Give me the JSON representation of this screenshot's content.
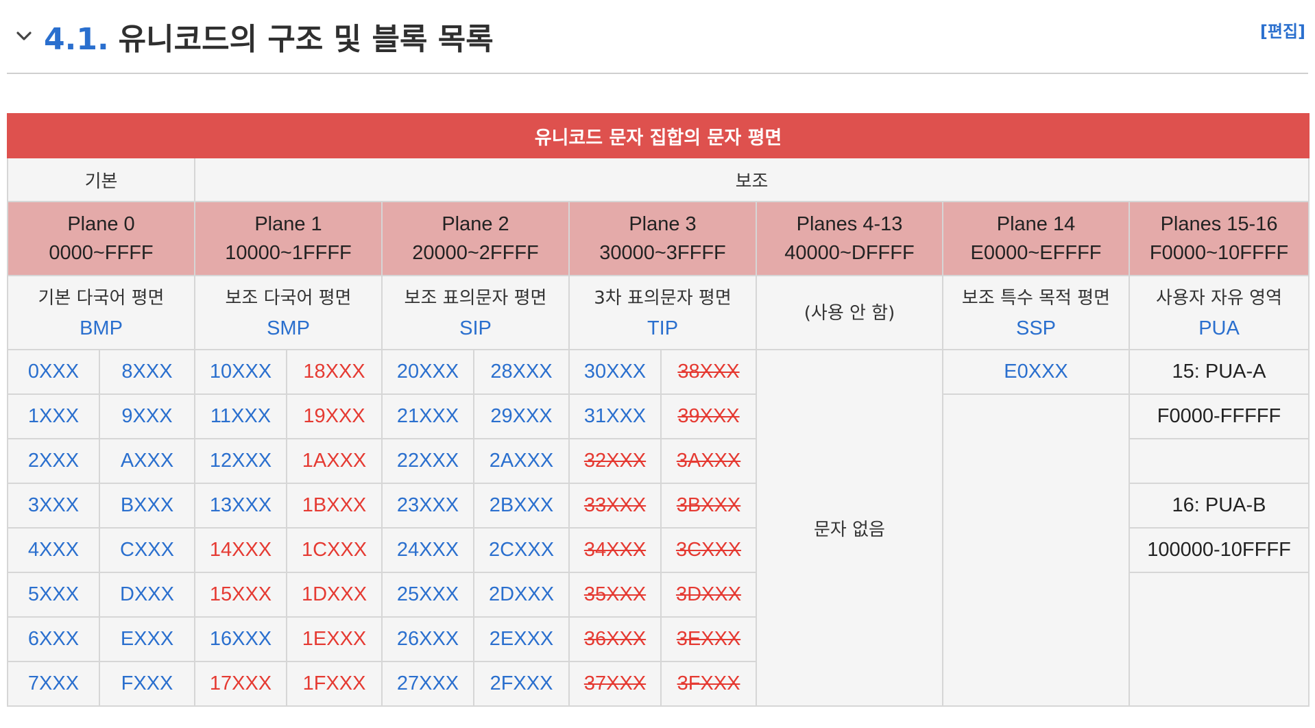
{
  "header": {
    "section_number": "4.1.",
    "section_title": "유니코드의 구조 및 블록 목록",
    "edit_label": "[편집]",
    "icons": {
      "collapse": "chevron-down-icon"
    }
  },
  "table": {
    "title": "유니코드 문자 집합의 문자 평면",
    "groups": {
      "basic": "기본",
      "supplementary": "보조"
    },
    "planes": [
      {
        "name": "Plane 0",
        "range": "0000~FFFF",
        "korean": "기본 다국어 평면",
        "abbr": "BMP"
      },
      {
        "name": "Plane 1",
        "range": "10000~1FFFF",
        "korean": "보조 다국어 평면",
        "abbr": "SMP"
      },
      {
        "name": "Plane 2",
        "range": "20000~2FFFF",
        "korean": "보조 표의문자 평면",
        "abbr": "SIP"
      },
      {
        "name": "Plane 3",
        "range": "30000~3FFFF",
        "korean": "3차 표의문자 평면",
        "abbr": "TIP"
      },
      {
        "name": "Planes 4-13",
        "range": "40000~DFFFF",
        "korean": "(사용 안 함)",
        "abbr": ""
      },
      {
        "name": "Plane 14",
        "range": "E0000~EFFFF",
        "korean": "보조 특수 목적 평면",
        "abbr": "SSP"
      },
      {
        "name": "Planes 15-16",
        "range": "F0000~10FFFF",
        "korean": "사용자 자유 영역",
        "abbr": "PUA"
      }
    ],
    "blocks": {
      "p0a": [
        "0XXX",
        "1XXX",
        "2XXX",
        "3XXX",
        "4XXX",
        "5XXX",
        "6XXX",
        "7XXX"
      ],
      "p0b": [
        "8XXX",
        "9XXX",
        "AXXX",
        "BXXX",
        "CXXX",
        "DXXX",
        "EXXX",
        "FXXX"
      ],
      "p1a": [
        "10XXX",
        "11XXX",
        "12XXX",
        "13XXX",
        "14XXX",
        "15XXX",
        "16XXX",
        "17XXX"
      ],
      "p1b": [
        "18XXX",
        "19XXX",
        "1AXXX",
        "1BXXX",
        "1CXXX",
        "1DXXX",
        "1EXXX",
        "1FXXX"
      ],
      "p2a": [
        "20XXX",
        "21XXX",
        "22XXX",
        "23XXX",
        "24XXX",
        "25XXX",
        "26XXX",
        "27XXX"
      ],
      "p2b": [
        "28XXX",
        "29XXX",
        "2AXXX",
        "2BXXX",
        "2CXXX",
        "2DXXX",
        "2EXXX",
        "2FXXX"
      ],
      "p3a": [
        "30XXX",
        "31XXX",
        "32XXX",
        "33XXX",
        "34XXX",
        "35XXX",
        "36XXX",
        "37XXX"
      ],
      "p3b": [
        "38XXX",
        "39XXX",
        "3AXXX",
        "3BXXX",
        "3CXXX",
        "3DXXX",
        "3EXXX",
        "3FXXX"
      ]
    },
    "planes_4_13_note": "문자 없음",
    "plane14_block": "E0XXX",
    "pua": [
      "15: PUA-A",
      "F0000-FFFFF",
      "16: PUA-B",
      "100000-10FFFF"
    ],
    "colors": {
      "title_bg": "#de514e",
      "plane_bg": "#e4aaa9",
      "link_blue": "#2a6fce",
      "red": "#e53a32"
    }
  }
}
